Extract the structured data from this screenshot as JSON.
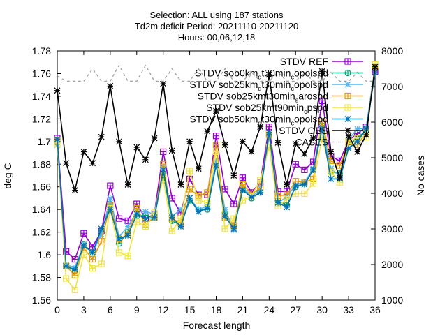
{
  "chart_data": {
    "type": "line",
    "title_lines": [
      "Selection: ALL using    187 stations",
      "Td2m deficit   Period: 20211110-20211120",
      "Hours: 00,06,12,18"
    ],
    "xlabel": "Forecast length",
    "ylabel": "deg C",
    "y2label": "No cases",
    "xlim": [
      0,
      36
    ],
    "ylim": [
      1.56,
      1.78
    ],
    "y2lim": [
      1000,
      8000
    ],
    "xticks": [
      "0",
      "3",
      "6",
      "9",
      "12",
      "15",
      "18",
      "21",
      "24",
      "27",
      "30",
      "33",
      "36"
    ],
    "yticks": [
      "1.56",
      "1.58",
      "1.6",
      "1.62",
      "1.64",
      "1.66",
      "1.68",
      "1.7",
      "1.72",
      "1.74",
      "1.76",
      "1.78"
    ],
    "y2ticks": [
      "1000",
      "2000",
      "3000",
      "4000",
      "5000",
      "6000",
      "7000",
      "8000"
    ],
    "grid": false,
    "legend_position": "top-right",
    "x": [
      0,
      1,
      2,
      3,
      4,
      5,
      6,
      7,
      8,
      9,
      10,
      11,
      12,
      13,
      14,
      15,
      16,
      17,
      18,
      19,
      20,
      21,
      22,
      23,
      24,
      25,
      26,
      27,
      28,
      29,
      30,
      31,
      32,
      33,
      34,
      35,
      36
    ],
    "series": [
      {
        "name": "STDV REF",
        "legend_parts": [
          [
            "STDV REF",
            "n"
          ]
        ],
        "color": "#9400d3",
        "marker": "box",
        "axis": "y1",
        "values": [
          1.703,
          1.603,
          1.596,
          1.619,
          1.607,
          1.621,
          1.661,
          1.632,
          1.63,
          1.645,
          1.632,
          1.636,
          1.691,
          1.65,
          1.637,
          1.667,
          1.653,
          1.653,
          1.705,
          1.658,
          1.645,
          1.668,
          1.655,
          1.664,
          1.713,
          1.656,
          1.656,
          1.68,
          1.675,
          1.682,
          1.736,
          1.687,
          1.683,
          1.701,
          1.707,
          1.713,
          1.762
        ]
      },
      {
        "name": "STDV sob0km_d t30min_c opolspd",
        "legend_parts": [
          [
            "STDV sob0km",
            "n"
          ],
          [
            "d",
            "sub"
          ],
          [
            "t30min",
            "n"
          ],
          [
            "c",
            "sub"
          ],
          [
            "opolspd",
            "n"
          ]
        ],
        "color": "#009e73",
        "marker": "circle",
        "axis": "y1",
        "values": [
          1.7,
          1.59,
          1.586,
          1.609,
          1.602,
          1.621,
          1.645,
          1.61,
          1.62,
          1.634,
          1.635,
          1.633,
          1.672,
          1.63,
          1.626,
          1.648,
          1.64,
          1.64,
          1.68,
          1.637,
          1.625,
          1.658,
          1.65,
          1.655,
          1.705,
          1.648,
          1.644,
          1.66,
          1.663,
          1.675,
          1.716,
          1.673,
          1.672,
          1.697,
          1.703,
          1.71,
          1.766
        ]
      },
      {
        "name": "STDV sob25km_d t30min_c opolspd",
        "legend_parts": [
          [
            "STDV sob25km",
            "n"
          ],
          [
            "d",
            "sub"
          ],
          [
            "t30min",
            "n"
          ],
          [
            "c",
            "sub"
          ],
          [
            "opolspd",
            "n"
          ]
        ],
        "color": "#56b4e9",
        "marker": "star",
        "axis": "y1",
        "values": [
          1.697,
          1.591,
          1.589,
          1.609,
          1.602,
          1.618,
          1.65,
          1.616,
          1.625,
          1.638,
          1.638,
          1.636,
          1.678,
          1.634,
          1.64,
          1.65,
          1.64,
          1.643,
          1.683,
          1.64,
          1.622,
          1.66,
          1.651,
          1.659,
          1.706,
          1.646,
          1.651,
          1.662,
          1.664,
          1.676,
          1.712,
          1.676,
          1.67,
          1.702,
          1.711,
          1.712,
          1.767
        ]
      },
      {
        "name": "STDV sob25km_t30min_s arospd",
        "legend_parts": [
          [
            "STDV sob25km",
            "n"
          ],
          [
            "t30min",
            "n"
          ],
          [
            "s",
            "sub"
          ],
          [
            "arospd",
            "n"
          ]
        ],
        "color": "#e69f00",
        "marker": "box",
        "axis": "y1",
        "values": [
          1.701,
          1.59,
          1.582,
          1.606,
          1.596,
          1.612,
          1.644,
          1.614,
          1.618,
          1.641,
          1.627,
          1.633,
          1.68,
          1.632,
          1.628,
          1.658,
          1.652,
          1.655,
          1.697,
          1.633,
          1.626,
          1.662,
          1.654,
          1.659,
          1.706,
          1.652,
          1.653,
          1.665,
          1.664,
          1.667,
          1.718,
          1.683,
          1.679,
          1.698,
          1.697,
          1.708,
          1.766
        ]
      },
      {
        "name": "STDV sob25km_t90min_c pspd",
        "legend_parts": [
          [
            "STDV sob25km",
            "n"
          ],
          [
            "t90min",
            "n"
          ],
          [
            "c",
            "sub"
          ],
          [
            "pspd",
            "n"
          ]
        ],
        "color": "#f0e442",
        "marker": "box",
        "axis": "y1",
        "values": [
          1.698,
          1.579,
          1.569,
          1.6,
          1.588,
          1.592,
          1.641,
          1.602,
          1.599,
          1.629,
          1.625,
          1.637,
          1.667,
          1.621,
          1.632,
          1.674,
          1.648,
          1.646,
          1.691,
          1.623,
          1.632,
          1.648,
          1.652,
          1.666,
          1.695,
          1.643,
          1.649,
          1.654,
          1.654,
          1.663,
          1.703,
          1.673,
          1.664,
          1.701,
          1.703,
          1.704,
          1.768
        ]
      },
      {
        "name": "STDV sob50km_d t30min_c opolspd",
        "legend_parts": [
          [
            "STDV sob50km",
            "n"
          ],
          [
            "d",
            "sub"
          ],
          [
            "t30min",
            "n"
          ],
          [
            "c",
            "sub"
          ],
          [
            "opolspd",
            "n"
          ]
        ],
        "color": "#0072b2",
        "marker": "star",
        "axis": "y1",
        "values": [
          1.702,
          1.59,
          1.587,
          1.608,
          1.602,
          1.623,
          1.64,
          1.614,
          1.617,
          1.636,
          1.632,
          1.633,
          1.675,
          1.633,
          1.625,
          1.65,
          1.638,
          1.641,
          1.679,
          1.634,
          1.623,
          1.657,
          1.651,
          1.655,
          1.708,
          1.646,
          1.642,
          1.661,
          1.662,
          1.675,
          1.711,
          1.667,
          1.667,
          1.694,
          1.7,
          1.711,
          1.761
        ]
      },
      {
        "name": "STDV OBS",
        "legend_parts": [
          [
            "STDV OBS",
            "n"
          ]
        ],
        "color": "#000000",
        "marker": "star",
        "axis": "y1",
        "values": [
          1.745,
          1.681,
          1.657,
          1.691,
          1.681,
          1.704,
          1.749,
          1.7,
          1.662,
          1.695,
          1.684,
          1.703,
          1.751,
          1.692,
          1.662,
          1.7,
          1.676,
          1.709,
          1.727,
          1.697,
          1.67,
          1.7,
          1.691,
          1.713,
          1.759,
          1.699,
          1.662,
          1.698,
          1.689,
          1.703,
          1.762,
          1.691,
          1.668,
          1.705,
          1.691,
          1.706,
          1.766
        ]
      },
      {
        "name": "CASES",
        "legend_parts": [
          [
            "CASES",
            "n"
          ]
        ],
        "color": "#a0a0a0",
        "marker": "none",
        "dashed": true,
        "axis": "y2",
        "values": [
          7300,
          7150,
          7150,
          7150,
          7500,
          7150,
          7150,
          7600,
          7150,
          7150,
          7600,
          7150,
          7150,
          7500,
          7150,
          7150,
          7500,
          7150,
          7150,
          7500,
          7150,
          7150,
          7400,
          7150,
          7150,
          7400,
          7150,
          7150,
          7400,
          7150,
          7150,
          7400,
          7150,
          7150,
          7400,
          7150,
          7150
        ]
      }
    ]
  }
}
